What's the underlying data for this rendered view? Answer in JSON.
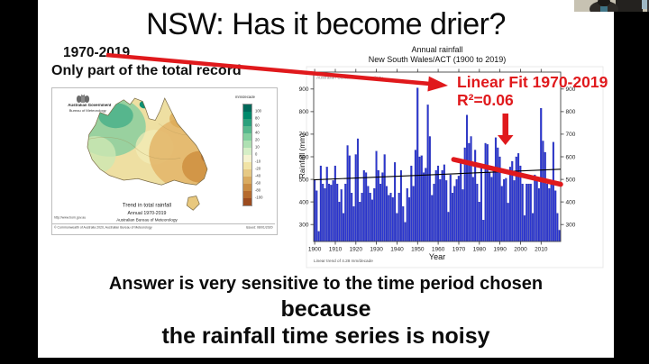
{
  "accent_red": "#e0191c",
  "webcam": {
    "label": "presenter video"
  },
  "slide": {
    "title": "NSW: Has it become drier?",
    "note_line1": "1970-2019",
    "note_line2": "Only part of the total record",
    "annotations": {
      "linear_fit": "Linear Fit 1970-2019",
      "r2": "R²=0.06"
    },
    "bottom": {
      "line1": "Answer is very sensitive to the time period chosen",
      "line2": "because",
      "line3": "the rainfall time series is noisy"
    },
    "map_figure": {
      "logo_line1": "Australian Government",
      "logo_line2": "Bureau of Meteorology",
      "caption_line1": "Trend in total rainfall",
      "caption_line2": "Annual 1970-2019",
      "caption_line3": "Australian Bureau of Meteorology",
      "url": "http://www.bom.gov.au",
      "copyright": "© Commonwealth of Australia 2020, Australian Bureau of Meteorology",
      "issued": "Issued: 08/01/2020",
      "colorbar": {
        "label": "mm/decade",
        "tick_labels": [
          "100",
          "80",
          "60",
          "40",
          "20",
          "10",
          "0",
          "-10",
          "-20",
          "-40",
          "-60",
          "-80",
          "-100"
        ],
        "colors": [
          "#00695a",
          "#00896b",
          "#2ba07c",
          "#57b88d",
          "#83cf9f",
          "#aee0b2",
          "#d5eec6",
          "#f5f3d1",
          "#f1e3a6",
          "#e6c985",
          "#d9ab61",
          "#c98c44",
          "#b56b2e",
          "#9c4c20"
        ]
      }
    }
  },
  "chart_data": {
    "type": "bar",
    "title": "Annual rainfall",
    "subtitle": "New South Wales/ACT (1900 to 2019)",
    "xlabel": "Year",
    "ylabel": "Rainfall (mm)",
    "watermark": "Australian Bureau of Meteorology",
    "footnote": "Linear trend of 4.28 mm/decade",
    "bar_color": "#2b36d0",
    "x_start_year": 1900,
    "x_end_year": 2019,
    "ylim": [
      225,
      975
    ],
    "yticks": [
      300,
      400,
      500,
      600,
      700,
      800,
      900
    ],
    "xticks": [
      1900,
      1910,
      1920,
      1930,
      1940,
      1950,
      1960,
      1970,
      1980,
      1990,
      2000,
      2010
    ],
    "values": [
      500,
      450,
      270,
      560,
      480,
      460,
      555,
      480,
      475,
      495,
      560,
      480,
      400,
      455,
      350,
      480,
      650,
      605,
      440,
      380,
      610,
      680,
      400,
      440,
      540,
      530,
      470,
      440,
      410,
      460,
      625,
      540,
      480,
      530,
      610,
      470,
      430,
      440,
      420,
      575,
      350,
      440,
      540,
      380,
      310,
      460,
      420,
      560,
      470,
      630,
      905,
      600,
      605,
      530,
      550,
      830,
      690,
      430,
      480,
      540,
      560,
      500,
      540,
      565,
      495,
      355,
      520,
      440,
      470,
      500,
      515,
      570,
      455,
      640,
      785,
      660,
      690,
      510,
      630,
      480,
      400,
      560,
      320,
      660,
      655,
      530,
      510,
      540,
      685,
      640,
      600,
      470,
      500,
      505,
      395,
      555,
      580,
      495,
      600,
      615,
      560,
      480,
      340,
      480,
      480,
      480,
      350,
      520,
      500,
      460,
      815,
      670,
      620,
      480,
      460,
      490,
      665,
      450,
      350,
      275
    ],
    "long_term_trend_line": {
      "color": "#000000",
      "start_year": 1900,
      "start_value": 498,
      "end_year": 2019,
      "end_value": 545
    },
    "linear_fit_1970_2019": {
      "color": "#e0191c",
      "start_year": 1968,
      "start_value": 588,
      "end_year": 2019,
      "end_value": 478,
      "r_squared": 0.06
    }
  }
}
